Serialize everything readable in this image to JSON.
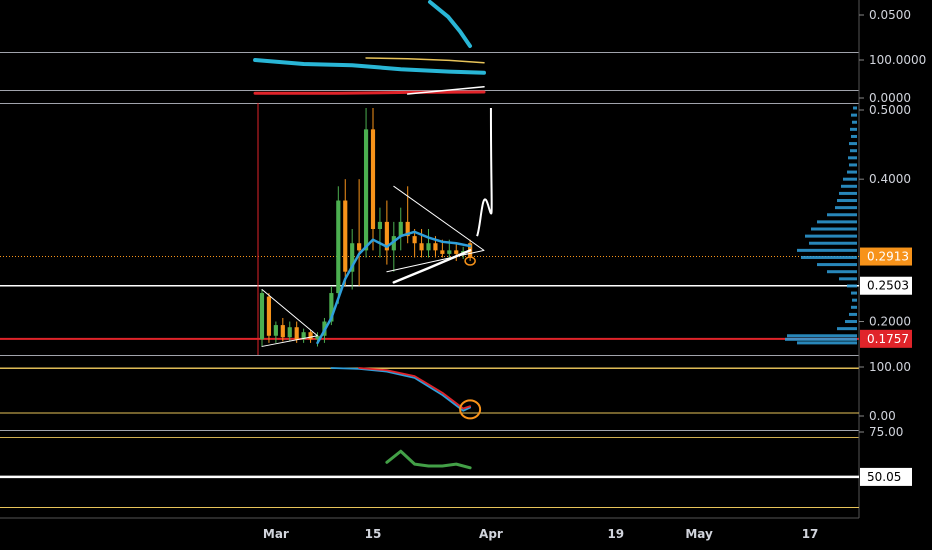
{
  "colors": {
    "background": "#000000",
    "axis_text": "#d1d4dc",
    "grid_line": "#b2b5be",
    "candle_up": "#26a69a",
    "candle_down": "#f7931a",
    "candle_body_up": "#4caf50",
    "ema": "#2f9fdb",
    "price_orange": "#f7931a",
    "support_red": "#e0242a",
    "pane_line_yellow": "#e8c45a",
    "volume_profile": "#2f9fdb",
    "cyan_indicator": "#29b6d6",
    "green_indicator": "#43a047",
    "white": "#ffffff"
  },
  "chart_data": [
    {
      "pane": "indicator-top-1",
      "type": "line",
      "y_ticks": [
        "0.0500"
      ],
      "series": [
        {
          "color": "#29b6d6",
          "x": [
            "2020-03-28",
            "2020-03-29",
            "2020-03-30",
            "2020-03-31"
          ],
          "values": [
            0.062,
            0.058,
            0.054,
            0.05
          ]
        }
      ]
    },
    {
      "pane": "indicator-top-2",
      "type": "line",
      "y_ticks": [
        "100.0000",
        "0.0000"
      ],
      "series": [
        {
          "color": "#29b6d6",
          "x": [
            "2020-02-27",
            "2020-03-05",
            "2020-03-12",
            "2020-03-19",
            "2020-03-26",
            "2020-03-31"
          ],
          "values": [
            95,
            85,
            82,
            72,
            66,
            63
          ]
        },
        {
          "color": "#e8c45a",
          "x": [
            "2020-03-14",
            "2020-03-20",
            "2020-03-26",
            "2020-03-31"
          ],
          "values": [
            100,
            98,
            94,
            88
          ]
        },
        {
          "color": "#e0242a",
          "x": [
            "2020-02-27",
            "2020-03-10",
            "2020-03-20",
            "2020-03-31"
          ],
          "values": [
            12,
            12,
            14,
            15
          ]
        },
        {
          "color": "#ffffff",
          "x": [
            "2020-03-20",
            "2020-03-31"
          ],
          "values": [
            10,
            28
          ]
        }
      ]
    },
    {
      "pane": "main-price",
      "type": "candlestick",
      "y_ticks": [
        "0.5000",
        "0.4000",
        "0.2000"
      ],
      "y_scale": {
        "min": 0.16,
        "max": 0.5
      },
      "price_labels": [
        {
          "text": "0.2913",
          "value": 0.2913,
          "color": "#f7931a"
        },
        {
          "text": "0.2503",
          "value": 0.2503,
          "color": "#ffffff"
        },
        {
          "text": "0.1757",
          "value": 0.1757,
          "color": "#e0242a"
        }
      ],
      "candles": [
        {
          "date": "2020-02-28",
          "o": 0.175,
          "h": 0.245,
          "l": 0.165,
          "c": 0.24
        },
        {
          "date": "2020-02-29",
          "o": 0.235,
          "h": 0.24,
          "l": 0.17,
          "c": 0.18
        },
        {
          "date": "2020-03-01",
          "o": 0.18,
          "h": 0.2,
          "l": 0.17,
          "c": 0.195
        },
        {
          "date": "2020-03-02",
          "o": 0.195,
          "h": 0.205,
          "l": 0.172,
          "c": 0.178
        },
        {
          "date": "2020-03-03",
          "o": 0.178,
          "h": 0.2,
          "l": 0.172,
          "c": 0.192
        },
        {
          "date": "2020-03-04",
          "o": 0.192,
          "h": 0.2,
          "l": 0.17,
          "c": 0.175
        },
        {
          "date": "2020-03-05",
          "o": 0.175,
          "h": 0.19,
          "l": 0.17,
          "c": 0.185
        },
        {
          "date": "2020-03-06",
          "o": 0.185,
          "h": 0.188,
          "l": 0.17,
          "c": 0.175
        },
        {
          "date": "2020-03-07",
          "o": 0.175,
          "h": 0.185,
          "l": 0.165,
          "c": 0.18
        },
        {
          "date": "2020-03-08",
          "o": 0.18,
          "h": 0.205,
          "l": 0.17,
          "c": 0.2
        },
        {
          "date": "2020-03-09",
          "o": 0.2,
          "h": 0.25,
          "l": 0.195,
          "c": 0.24
        },
        {
          "date": "2020-03-10",
          "o": 0.24,
          "h": 0.39,
          "l": 0.225,
          "c": 0.37
        },
        {
          "date": "2020-03-11",
          "o": 0.37,
          "h": 0.4,
          "l": 0.25,
          "c": 0.27
        },
        {
          "date": "2020-03-12",
          "o": 0.27,
          "h": 0.33,
          "l": 0.245,
          "c": 0.31
        },
        {
          "date": "2020-03-13",
          "o": 0.31,
          "h": 0.4,
          "l": 0.25,
          "c": 0.3
        },
        {
          "date": "2020-03-14",
          "o": 0.3,
          "h": 0.5,
          "l": 0.29,
          "c": 0.47
        },
        {
          "date": "2020-03-15",
          "o": 0.47,
          "h": 0.5,
          "l": 0.3,
          "c": 0.33
        },
        {
          "date": "2020-03-16",
          "o": 0.33,
          "h": 0.36,
          "l": 0.29,
          "c": 0.34
        },
        {
          "date": "2020-03-17",
          "o": 0.34,
          "h": 0.37,
          "l": 0.28,
          "c": 0.3
        },
        {
          "date": "2020-03-18",
          "o": 0.3,
          "h": 0.34,
          "l": 0.27,
          "c": 0.32
        },
        {
          "date": "2020-03-19",
          "o": 0.32,
          "h": 0.36,
          "l": 0.3,
          "c": 0.34
        },
        {
          "date": "2020-03-20",
          "o": 0.34,
          "h": 0.39,
          "l": 0.31,
          "c": 0.32
        },
        {
          "date": "2020-03-21",
          "o": 0.32,
          "h": 0.33,
          "l": 0.29,
          "c": 0.31
        },
        {
          "date": "2020-03-22",
          "o": 0.31,
          "h": 0.33,
          "l": 0.29,
          "c": 0.3
        },
        {
          "date": "2020-03-23",
          "o": 0.3,
          "h": 0.33,
          "l": 0.29,
          "c": 0.31
        },
        {
          "date": "2020-03-24",
          "o": 0.31,
          "h": 0.32,
          "l": 0.29,
          "c": 0.3
        },
        {
          "date": "2020-03-25",
          "o": 0.3,
          "h": 0.315,
          "l": 0.29,
          "c": 0.295
        },
        {
          "date": "2020-03-26",
          "o": 0.295,
          "h": 0.315,
          "l": 0.288,
          "c": 0.3
        },
        {
          "date": "2020-03-27",
          "o": 0.3,
          "h": 0.31,
          "l": 0.285,
          "c": 0.295
        },
        {
          "date": "2020-03-28",
          "o": 0.295,
          "h": 0.305,
          "l": 0.288,
          "c": 0.299
        },
        {
          "date": "2020-03-29",
          "o": 0.31,
          "h": 0.315,
          "l": 0.285,
          "c": 0.291
        }
      ],
      "ema": {
        "x": [
          "2020-03-07",
          "2020-03-09",
          "2020-03-11",
          "2020-03-13",
          "2020-03-15",
          "2020-03-17",
          "2020-03-19",
          "2020-03-21",
          "2020-03-23",
          "2020-03-25",
          "2020-03-27",
          "2020-03-29"
        ],
        "values": [
          0.17,
          0.205,
          0.26,
          0.295,
          0.315,
          0.305,
          0.32,
          0.326,
          0.318,
          0.312,
          0.31,
          0.306
        ]
      },
      "horizontal_levels": [
        {
          "value": 0.2503,
          "color": "#ffffff"
        },
        {
          "value": 0.1757,
          "color": "#e0242a"
        },
        {
          "value": 0.2913,
          "color": "#f7931a",
          "dotted": true
        }
      ],
      "drawings": {
        "triangle_1": [
          [
            "2020-02-28",
            0.245
          ],
          [
            "2020-03-07",
            0.18
          ],
          [
            "2020-02-28",
            0.165
          ]
        ],
        "triangle_2": [
          [
            "2020-03-18",
            0.39
          ],
          [
            "2020-03-31",
            0.3
          ],
          [
            "2020-03-17",
            0.27
          ]
        ],
        "trend_white": [
          [
            "2020-03-18",
            0.255
          ],
          [
            "2020-03-23",
            0.275
          ],
          [
            "2020-03-29",
            0.3
          ]
        ],
        "projection": [
          [
            "2020-03-30",
            0.32
          ],
          [
            "2020-03-31",
            0.35
          ],
          [
            "2020-04-01",
            0.36
          ],
          [
            "2020-04-01",
            0.5
          ]
        ]
      },
      "volume_profile": [
        {
          "price": 0.5,
          "w": 4
        },
        {
          "price": 0.49,
          "w": 6
        },
        {
          "price": 0.48,
          "w": 5
        },
        {
          "price": 0.47,
          "w": 7
        },
        {
          "price": 0.46,
          "w": 6
        },
        {
          "price": 0.45,
          "w": 8
        },
        {
          "price": 0.44,
          "w": 7
        },
        {
          "price": 0.43,
          "w": 9
        },
        {
          "price": 0.42,
          "w": 8
        },
        {
          "price": 0.41,
          "w": 10
        },
        {
          "price": 0.4,
          "w": 14
        },
        {
          "price": 0.39,
          "w": 16
        },
        {
          "price": 0.38,
          "w": 18
        },
        {
          "price": 0.37,
          "w": 20
        },
        {
          "price": 0.36,
          "w": 22
        },
        {
          "price": 0.35,
          "w": 30
        },
        {
          "price": 0.34,
          "w": 40
        },
        {
          "price": 0.33,
          "w": 46
        },
        {
          "price": 0.32,
          "w": 52
        },
        {
          "price": 0.31,
          "w": 48
        },
        {
          "price": 0.3,
          "w": 60
        },
        {
          "price": 0.29,
          "w": 56
        },
        {
          "price": 0.28,
          "w": 40
        },
        {
          "price": 0.27,
          "w": 30
        },
        {
          "price": 0.26,
          "w": 18
        },
        {
          "price": 0.25,
          "w": 10
        },
        {
          "price": 0.24,
          "w": 6
        },
        {
          "price": 0.23,
          "w": 5
        },
        {
          "price": 0.22,
          "w": 6
        },
        {
          "price": 0.21,
          "w": 8
        },
        {
          "price": 0.2,
          "w": 12
        },
        {
          "price": 0.19,
          "w": 20
        },
        {
          "price": 0.18,
          "w": 70
        },
        {
          "price": 0.175,
          "w": 72
        },
        {
          "price": 0.17,
          "w": 60
        }
      ]
    },
    {
      "pane": "indicator-rsi",
      "type": "line",
      "y_ticks": [
        "100.00",
        "0.00"
      ],
      "series": [
        {
          "color": "#2f9fdb",
          "x": [
            "2020-03-09",
            "2020-03-13",
            "2020-03-17",
            "2020-03-21",
            "2020-03-25",
            "2020-03-28",
            "2020-03-29"
          ],
          "values": [
            100,
            98,
            92,
            78,
            40,
            5,
            12
          ]
        },
        {
          "color": "#e0242a",
          "x": [
            "2020-03-13",
            "2020-03-17",
            "2020-03-21",
            "2020-03-25",
            "2020-03-28",
            "2020-03-29"
          ],
          "values": [
            100,
            95,
            82,
            45,
            10,
            15
          ]
        }
      ],
      "levels": [
        100,
        0
      ]
    },
    {
      "pane": "indicator-bottom",
      "type": "line",
      "y_ticks": [
        "75.00"
      ],
      "price_labels": [
        {
          "text": "50.05",
          "value": 50.05,
          "color": "#ffffff"
        }
      ],
      "series": [
        {
          "color": "#43a047",
          "x": [
            "2020-03-17",
            "2020-03-19",
            "2020-03-21",
            "2020-03-23",
            "2020-03-25",
            "2020-03-27",
            "2020-03-29"
          ],
          "values": [
            58,
            64,
            57,
            56,
            56,
            57,
            55
          ]
        }
      ]
    }
  ],
  "x_axis": {
    "ticks": [
      {
        "label": "Mar",
        "date": "2020-03-01"
      },
      {
        "label": "15",
        "date": "2020-03-15"
      },
      {
        "label": "Apr",
        "date": "2020-04-01"
      },
      {
        "label": "19",
        "date": "2020-04-19"
      },
      {
        "label": "May",
        "date": "2020-05-01"
      },
      {
        "label": "17",
        "date": "2020-05-17"
      }
    ]
  }
}
